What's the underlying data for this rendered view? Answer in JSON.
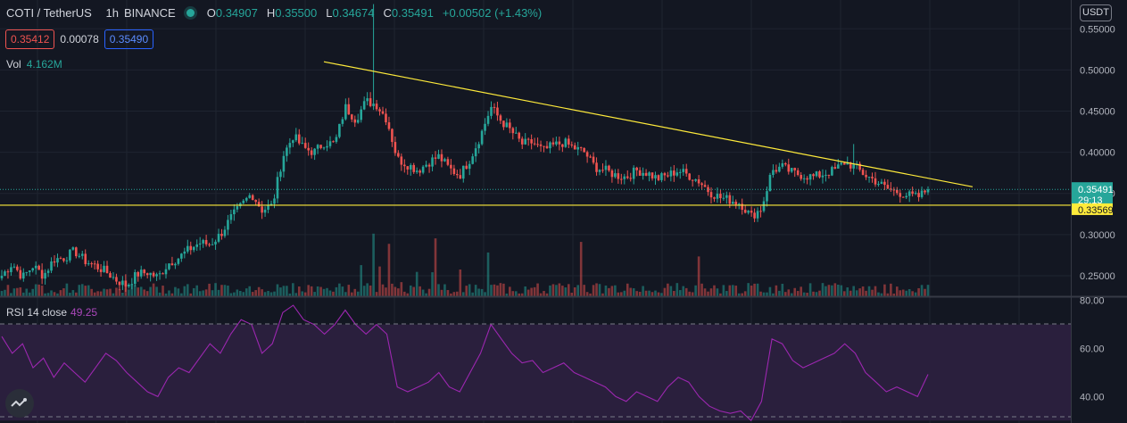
{
  "header": {
    "symbol": "COTI / TetherUS",
    "interval": "1h",
    "exchange": "BINANCE",
    "open_label": "O",
    "open": "0.34907",
    "high_label": "H",
    "high": "0.35500",
    "low_label": "L",
    "low": "0.34674",
    "close_label": "C",
    "close": "0.35491",
    "change": "+0.00502 (+1.43%)"
  },
  "quote": {
    "bid": "0.35412",
    "spread": "0.00078",
    "ask": "0.35490"
  },
  "volume": {
    "label": "Vol",
    "value": "4.162M"
  },
  "rsi": {
    "label": "RSI 14 close",
    "value": "49.25"
  },
  "currency": "USDT",
  "colors": {
    "up": "#26a69a",
    "down": "#ef5350",
    "trendline": "#ffeb3b",
    "rsi": "#9c27b0",
    "rsi_band": "#2a1f3d",
    "background": "#131722"
  },
  "chart_data": [
    {
      "type": "candlestick",
      "title": "COTI / TetherUS 1h",
      "y_axis_ticks": [
        0.25,
        0.3,
        0.35,
        0.4,
        0.45,
        0.5,
        0.55
      ],
      "ylim": [
        0.225,
        0.585
      ],
      "grid": true,
      "close_path": [
        0.25,
        0.265,
        0.248,
        0.262,
        0.25,
        0.27,
        0.272,
        0.28,
        0.268,
        0.262,
        0.255,
        0.245,
        0.238,
        0.252,
        0.254,
        0.248,
        0.265,
        0.272,
        0.282,
        0.29,
        0.288,
        0.3,
        0.32,
        0.335,
        0.35,
        0.33,
        0.335,
        0.395,
        0.42,
        0.405,
        0.4,
        0.412,
        0.41,
        0.455,
        0.44,
        0.462,
        0.458,
        0.44,
        0.392,
        0.385,
        0.378,
        0.388,
        0.395,
        0.38,
        0.372,
        0.392,
        0.42,
        0.455,
        0.438,
        0.425,
        0.41,
        0.412,
        0.402,
        0.408,
        0.412,
        0.405,
        0.4,
        0.382,
        0.378,
        0.372,
        0.37,
        0.378,
        0.375,
        0.368,
        0.372,
        0.378,
        0.372,
        0.365,
        0.352,
        0.345,
        0.342,
        0.338,
        0.322,
        0.332,
        0.378,
        0.382,
        0.375,
        0.372,
        0.37,
        0.374,
        0.378,
        0.388,
        0.382,
        0.372,
        0.365,
        0.356,
        0.352,
        0.348,
        0.345,
        0.355
      ],
      "volume_peak": "4.162M",
      "horizontal_levels": [
        {
          "value": 0.33569,
          "label": "0.33569"
        }
      ],
      "last_price": {
        "value": 0.35491,
        "label": "0.35491",
        "countdown": "29:13"
      },
      "trendline": {
        "from": 0.51,
        "to": 0.358
      }
    },
    {
      "type": "line",
      "title": "RSI 14 close",
      "y_axis_ticks": [
        40.0,
        60.0,
        80.0
      ],
      "bands": [
        30,
        70
      ],
      "ylim": [
        29,
        81
      ],
      "values": [
        65,
        58,
        62,
        52,
        56,
        48,
        54,
        50,
        46,
        52,
        58,
        55,
        50,
        46,
        42,
        40,
        48,
        52,
        50,
        56,
        62,
        58,
        66,
        72,
        70,
        58,
        62,
        75,
        78,
        72,
        70,
        66,
        70,
        76,
        70,
        66,
        70,
        66,
        44,
        42,
        44,
        46,
        50,
        44,
        42,
        50,
        58,
        70,
        64,
        58,
        54,
        55,
        50,
        52,
        54,
        50,
        48,
        46,
        44,
        40,
        38,
        42,
        40,
        38,
        44,
        48,
        46,
        40,
        36,
        34,
        33,
        34,
        30,
        38,
        64,
        62,
        55,
        52,
        54,
        56,
        58,
        62,
        58,
        50,
        46,
        42,
        44,
        42,
        40,
        49.25
      ]
    }
  ]
}
